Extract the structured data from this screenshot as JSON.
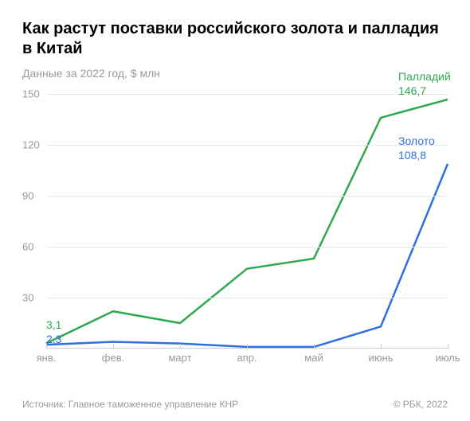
{
  "title": "Как растут поставки российского золота и палладия в Китай",
  "subtitle": "Данные за 2022 год, $ млн",
  "footer": {
    "source": "Источник: Главное таможенное управление КНР",
    "copyright": "© РБК, 2022"
  },
  "chart": {
    "type": "line",
    "background_color": "#ffffff",
    "grid_color": "#e8e8e8",
    "axis_color": "#cccccc",
    "tick_label_color": "#999999",
    "tick_fontsize": 13,
    "line_width": 2.5,
    "ylim": [
      0,
      150
    ],
    "yticks": [
      30,
      60,
      90,
      120,
      150
    ],
    "x_categories": [
      "янв.",
      "фев.",
      "март",
      "апр.",
      "май",
      "июнь",
      "июль"
    ],
    "series": [
      {
        "name": "Палладий",
        "color": "#2fa84f",
        "values": [
          3.1,
          22,
          15,
          47,
          53,
          136,
          146.7
        ],
        "start_label": "3,1",
        "end_label": "146,7"
      },
      {
        "name": "Золото",
        "color": "#2f6fe0",
        "values": [
          2.3,
          4,
          3,
          1,
          1,
          13,
          108.8
        ],
        "start_label": "2,3",
        "end_label": "108,8"
      }
    ]
  }
}
